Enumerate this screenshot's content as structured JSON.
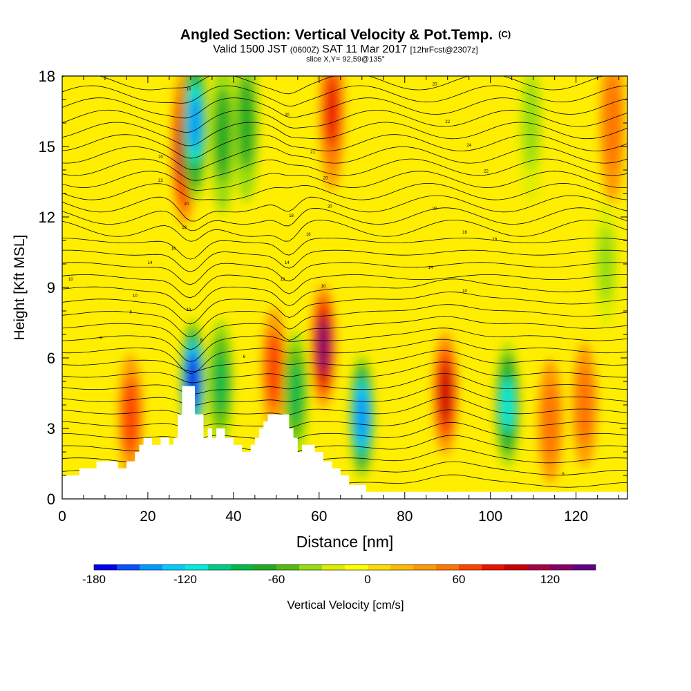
{
  "chart_data": {
    "type": "heatmap",
    "title": "Angled Section: Vertical Velocity & Pot.Temp.",
    "title_tag": "(C)",
    "subtitle_parts": [
      "Valid 1500 JST",
      "(0600Z)",
      "SAT 11 Mar 2017",
      "[12hrFcst@2307z]"
    ],
    "slice_label": "slice X,Y= 92,59@135°",
    "xlabel": "Distance [nm]",
    "ylabel": "Height [Kft MSL]",
    "xlim": [
      0,
      132
    ],
    "ylim": [
      0,
      18
    ],
    "x_ticks": [
      0,
      20,
      40,
      60,
      80,
      100,
      120
    ],
    "y_ticks": [
      0,
      3,
      6,
      9,
      12,
      15,
      18
    ],
    "colorbar": {
      "label": "Vertical Velocity [cm/s]",
      "min": -180,
      "max": 150,
      "tick_values": [
        -180,
        -120,
        -60,
        0,
        60,
        120
      ],
      "colors": [
        "#0000ee",
        "#0a50ff",
        "#0099ff",
        "#00ccff",
        "#00eedd",
        "#00cc88",
        "#00bb44",
        "#22aa22",
        "#55bb11",
        "#99dd11",
        "#ddee00",
        "#ffff00",
        "#ffdd00",
        "#ffbb00",
        "#ff9900",
        "#ff7700",
        "#ff4400",
        "#ee1100",
        "#cc0000",
        "#aa0044",
        "#880066",
        "#660088"
      ]
    },
    "terrain": [
      [
        0,
        1.0
      ],
      [
        4,
        1.0
      ],
      [
        4,
        1.3
      ],
      [
        8,
        1.3
      ],
      [
        8,
        1.6
      ],
      [
        13,
        1.6
      ],
      [
        13,
        1.3
      ],
      [
        15,
        1.3
      ],
      [
        15,
        1.6
      ],
      [
        17,
        1.6
      ],
      [
        17,
        2.0
      ],
      [
        18,
        2.0
      ],
      [
        18,
        2.3
      ],
      [
        19,
        2.3
      ],
      [
        19,
        2.6
      ],
      [
        21,
        2.6
      ],
      [
        21,
        2.3
      ],
      [
        23,
        2.3
      ],
      [
        23,
        2.6
      ],
      [
        25,
        2.6
      ],
      [
        25,
        2.3
      ],
      [
        26,
        2.3
      ],
      [
        26,
        2.6
      ],
      [
        27,
        2.6
      ],
      [
        27,
        3.6
      ],
      [
        28,
        3.6
      ],
      [
        28,
        4.8
      ],
      [
        31,
        4.8
      ],
      [
        31,
        3.6
      ],
      [
        33,
        3.6
      ],
      [
        33,
        2.6
      ],
      [
        34,
        2.6
      ],
      [
        34,
        3.0
      ],
      [
        35,
        3.0
      ],
      [
        35,
        2.6
      ],
      [
        36,
        2.6
      ],
      [
        36,
        3.0
      ],
      [
        38,
        3.0
      ],
      [
        38,
        2.6
      ],
      [
        40,
        2.6
      ],
      [
        40,
        2.3
      ],
      [
        42,
        2.3
      ],
      [
        42,
        2.0
      ],
      [
        44,
        2.0
      ],
      [
        44,
        2.3
      ],
      [
        45,
        2.3
      ],
      [
        45,
        2.6
      ],
      [
        46,
        2.6
      ],
      [
        46,
        3.0
      ],
      [
        47,
        3.0
      ],
      [
        47,
        3.3
      ],
      [
        48,
        3.3
      ],
      [
        48,
        3.6
      ],
      [
        53,
        3.6
      ],
      [
        53,
        3.0
      ],
      [
        54,
        3.0
      ],
      [
        54,
        2.6
      ],
      [
        55,
        2.6
      ],
      [
        55,
        2.0
      ],
      [
        56,
        2.0
      ],
      [
        56,
        2.3
      ],
      [
        59,
        2.3
      ],
      [
        59,
        2.0
      ],
      [
        61,
        2.0
      ],
      [
        61,
        1.6
      ],
      [
        63,
        1.6
      ],
      [
        63,
        1.3
      ],
      [
        65,
        1.3
      ],
      [
        65,
        1.0
      ],
      [
        67,
        1.0
      ],
      [
        67,
        0.6
      ],
      [
        71,
        0.6
      ],
      [
        71,
        0.3
      ],
      [
        132,
        0.3
      ]
    ],
    "updraft_cores_cm_s": [
      {
        "x": 28.5,
        "y": 15.0,
        "w": 110
      },
      {
        "x": 61.0,
        "y": 6.5,
        "w": 130
      },
      {
        "x": 89.5,
        "y": 4.5,
        "w": 100
      },
      {
        "x": 49.5,
        "y": 5.5,
        "w": 70
      },
      {
        "x": 16.0,
        "y": 3.5,
        "w": 70
      },
      {
        "x": 63.0,
        "y": 16.5,
        "w": 80
      },
      {
        "x": 114.0,
        "y": 3.3,
        "w": 50
      },
      {
        "x": 122.0,
        "y": 4.0,
        "w": 45
      },
      {
        "x": 128.5,
        "y": 16.0,
        "w": 50
      }
    ],
    "downdraft_cores_cm_s": [
      {
        "x": 30.5,
        "y": 5.0,
        "w": -180
      },
      {
        "x": 31.0,
        "y": 16.0,
        "w": -140
      },
      {
        "x": 70.0,
        "y": 3.5,
        "w": -150
      },
      {
        "x": 104.0,
        "y": 4.0,
        "w": -110
      },
      {
        "x": 37.0,
        "y": 5.0,
        "w": -80
      },
      {
        "x": 54.5,
        "y": 4.5,
        "w": -80
      },
      {
        "x": 37.5,
        "y": 15.5,
        "w": -70
      },
      {
        "x": 43.0,
        "y": 16.0,
        "w": -70
      },
      {
        "x": 109.5,
        "y": 16.0,
        "w": -40
      },
      {
        "x": 127.0,
        "y": 10.0,
        "w": -40
      }
    ],
    "isotherm_labels": [
      {
        "x": 9,
        "y": 6.8,
        "text": "6"
      },
      {
        "x": 16,
        "y": 7.9,
        "text": "8"
      },
      {
        "x": 17,
        "y": 8.6,
        "text": "10"
      },
      {
        "x": 2,
        "y": 9.3,
        "text": "10"
      },
      {
        "x": 20.5,
        "y": 10.0,
        "text": "14"
      },
      {
        "x": 26,
        "y": 10.6,
        "text": "16"
      },
      {
        "x": 28.5,
        "y": 11.5,
        "text": "18"
      },
      {
        "x": 29,
        "y": 12.5,
        "text": "20"
      },
      {
        "x": 23,
        "y": 13.5,
        "text": "22"
      },
      {
        "x": 23,
        "y": 14.5,
        "text": "20"
      },
      {
        "x": 29.5,
        "y": 17.4,
        "text": "18"
      },
      {
        "x": 42.5,
        "y": 6.0,
        "text": "6"
      },
      {
        "x": 32.5,
        "y": 6.7,
        "text": "8"
      },
      {
        "x": 29.5,
        "y": 8.0,
        "text": "10"
      },
      {
        "x": 51.5,
        "y": 9.3,
        "text": "12"
      },
      {
        "x": 52.5,
        "y": 10.0,
        "text": "14"
      },
      {
        "x": 57.5,
        "y": 11.2,
        "text": "16"
      },
      {
        "x": 53.5,
        "y": 12.0,
        "text": "18"
      },
      {
        "x": 62.5,
        "y": 12.4,
        "text": "20"
      },
      {
        "x": 61.5,
        "y": 13.6,
        "text": "20"
      },
      {
        "x": 58.5,
        "y": 14.7,
        "text": "21"
      },
      {
        "x": 52.5,
        "y": 16.3,
        "text": "20"
      },
      {
        "x": 61.0,
        "y": 9.0,
        "text": "10"
      },
      {
        "x": 86,
        "y": 9.8,
        "text": "14"
      },
      {
        "x": 94,
        "y": 11.3,
        "text": "16"
      },
      {
        "x": 87,
        "y": 12.3,
        "text": "20"
      },
      {
        "x": 99,
        "y": 13.9,
        "text": "22"
      },
      {
        "x": 95,
        "y": 15.0,
        "text": "24"
      },
      {
        "x": 90,
        "y": 16.0,
        "text": "22"
      },
      {
        "x": 87,
        "y": 17.6,
        "text": "20"
      },
      {
        "x": 101,
        "y": 11.0,
        "text": "18"
      },
      {
        "x": 94,
        "y": 8.8,
        "text": "10"
      },
      {
        "x": 117,
        "y": 1.0,
        "text": "8"
      }
    ]
  }
}
